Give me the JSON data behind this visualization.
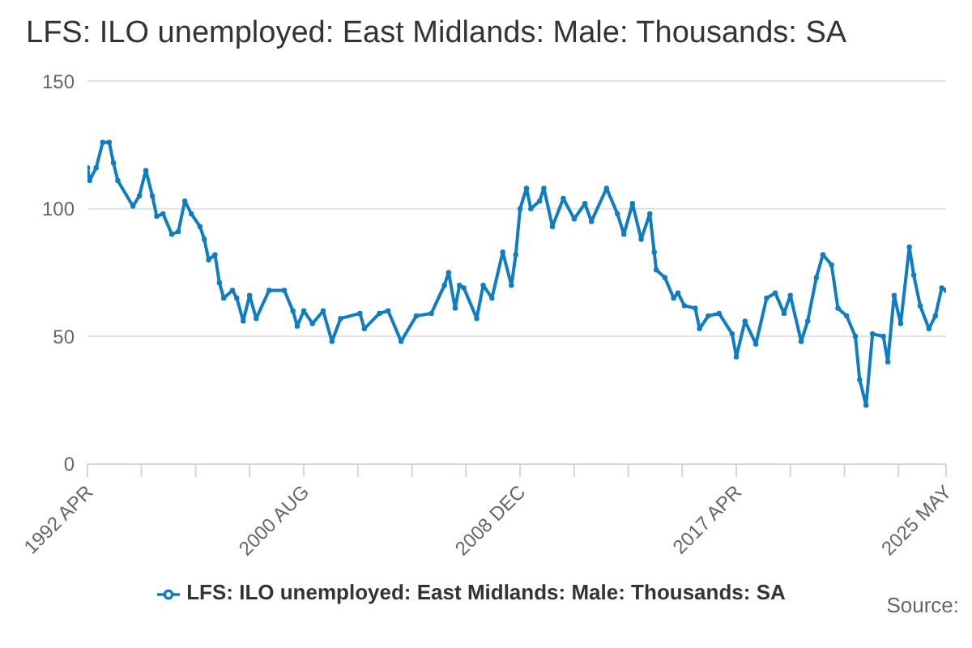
{
  "chart_data": {
    "type": "line",
    "title": "LFS: ILO unemployed: East Midlands: Male: Thousands: SA",
    "x": [
      "1992-04",
      "1992-05",
      "1992-08",
      "1992-11",
      "1993-02",
      "1993-04",
      "1993-06",
      "1994-01",
      "1994-04",
      "1994-07",
      "1994-10",
      "1994-12",
      "1995-03",
      "1995-07",
      "1995-10",
      "1996-01",
      "1996-04",
      "1996-08",
      "1996-10",
      "1996-12",
      "1997-03",
      "1997-05",
      "1997-07",
      "1997-11",
      "1998-01",
      "1998-04",
      "1998-07",
      "1998-10",
      "1999-04",
      "1999-11",
      "2000-03",
      "2000-05",
      "2000-08",
      "2000-12",
      "2001-05",
      "2001-09",
      "2002-01",
      "2002-10",
      "2002-12",
      "2003-07",
      "2003-11",
      "2004-05",
      "2004-12",
      "2005-07",
      "2006-01",
      "2006-03",
      "2006-06",
      "2006-08",
      "2006-10",
      "2007-04",
      "2007-07",
      "2007-11",
      "2008-04",
      "2008-08",
      "2008-10",
      "2008-12",
      "2009-03",
      "2009-05",
      "2009-09",
      "2009-11",
      "2010-03",
      "2010-08",
      "2011-01",
      "2011-06",
      "2011-09",
      "2012-04",
      "2012-09",
      "2012-12",
      "2013-04",
      "2013-08",
      "2013-12",
      "2014-02",
      "2014-03",
      "2014-07",
      "2014-11",
      "2015-01",
      "2015-04",
      "2015-09",
      "2015-11",
      "2016-03",
      "2016-08",
      "2017-02",
      "2017-04",
      "2017-08",
      "2018-01",
      "2018-06",
      "2018-10",
      "2019-02",
      "2019-05",
      "2019-10",
      "2020-01",
      "2020-05",
      "2020-08",
      "2020-12",
      "2021-03",
      "2021-07",
      "2021-11",
      "2022-01",
      "2022-04",
      "2022-07",
      "2022-12",
      "2023-02",
      "2023-05",
      "2023-08",
      "2023-12",
      "2024-02",
      "2024-05",
      "2024-09",
      "2024-12",
      "2025-03",
      "2025-05"
    ],
    "series": [
      {
        "name": "LFS: ILO unemployed: East Midlands: Male: Thousands: SA",
        "color": "#0f7dc2",
        "values": [
          116,
          111,
          116,
          126,
          126,
          118,
          111,
          101,
          105,
          115,
          105,
          97,
          98,
          90,
          91,
          103,
          98,
          93,
          88,
          80,
          82,
          71,
          65,
          68,
          65,
          56,
          66,
          57,
          68,
          68,
          60,
          54,
          60,
          55,
          60,
          48,
          57,
          59,
          53,
          59,
          60,
          48,
          58,
          59,
          70,
          75,
          61,
          70,
          69,
          57,
          70,
          65,
          83,
          70,
          82,
          100,
          108,
          100,
          103,
          108,
          93,
          104,
          96,
          102,
          95,
          108,
          98,
          90,
          102,
          88,
          98,
          83,
          76,
          73,
          65,
          67,
          62,
          61,
          53,
          58,
          59,
          51,
          42,
          56,
          47,
          65,
          67,
          59,
          66,
          48,
          56,
          73,
          82,
          78,
          61,
          58,
          50,
          33,
          23,
          51,
          50,
          40,
          66,
          55,
          85,
          74,
          62,
          53,
          58,
          69,
          68
        ]
      }
    ],
    "xlim": [
      "1992-04",
      "2025-05"
    ],
    "xticks": [
      {
        "value": "1992-04",
        "label": "1992 APR"
      },
      {
        "value": "1994-05",
        "label": null
      },
      {
        "value": "1996-06",
        "label": null
      },
      {
        "value": "1998-07",
        "label": null
      },
      {
        "value": "2000-08",
        "label": "2000 AUG"
      },
      {
        "value": "2002-09",
        "label": null
      },
      {
        "value": "2004-10",
        "label": null
      },
      {
        "value": "2006-11",
        "label": null
      },
      {
        "value": "2008-12",
        "label": "2008 DEC"
      },
      {
        "value": "2011-01",
        "label": null
      },
      {
        "value": "2013-02",
        "label": null
      },
      {
        "value": "2015-03",
        "label": null
      },
      {
        "value": "2017-04",
        "label": "2017 APR"
      },
      {
        "value": "2019-05",
        "label": null
      },
      {
        "value": "2021-06",
        "label": null
      },
      {
        "value": "2023-07",
        "label": null
      },
      {
        "value": "2025-05",
        "label": "2025 MAY"
      }
    ],
    "ylim": [
      0,
      150
    ],
    "yticks": [
      0,
      50,
      100,
      150
    ],
    "grid": "y",
    "legend": "bottom",
    "marker": "circle",
    "line_style": "solid",
    "annotations": [
      "Source:"
    ]
  }
}
